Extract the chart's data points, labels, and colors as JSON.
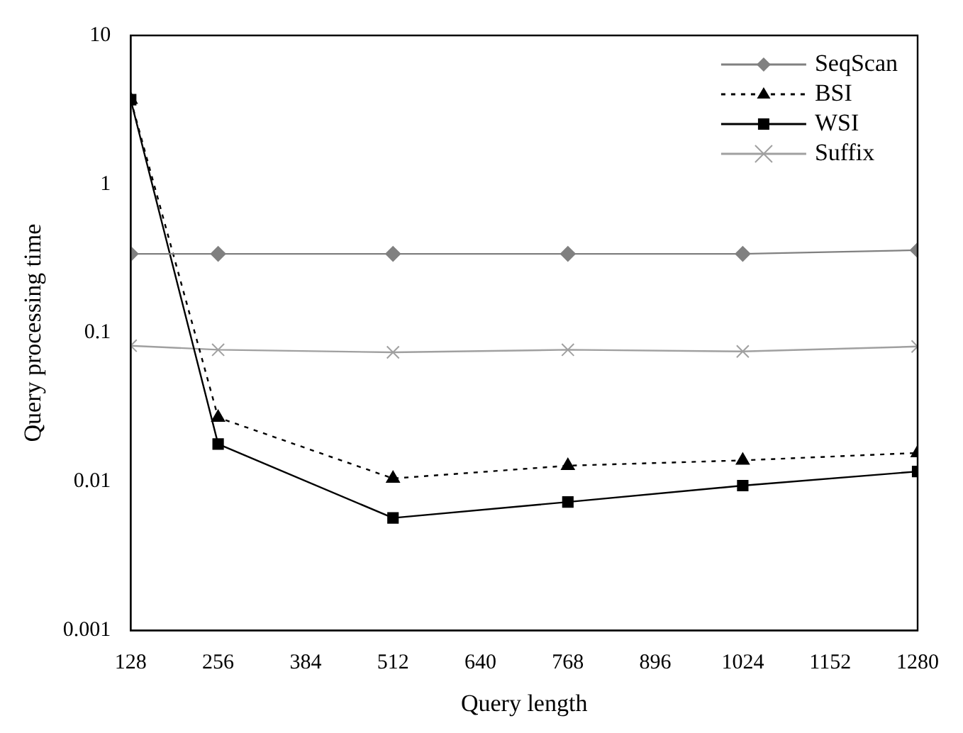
{
  "chart_data": {
    "type": "line",
    "xlabel": "Query length",
    "ylabel": "Query processing time",
    "x": [
      128,
      256,
      512,
      768,
      1024,
      1280
    ],
    "xlim": [
      128,
      1280
    ],
    "xticks": [
      128,
      256,
      384,
      512,
      640,
      768,
      896,
      1024,
      1152,
      1280
    ],
    "ylim": [
      0.001,
      10
    ],
    "yticks": [
      0.001,
      0.01,
      0.1,
      1,
      10
    ],
    "log": "y",
    "grid": false,
    "legend": "top right",
    "series": [
      {
        "name": "SeqScan",
        "color": "#808080",
        "marker": "diamond",
        "line_style": "solid",
        "values": [
          0.34,
          0.34,
          0.34,
          0.34,
          0.34,
          0.36
        ]
      },
      {
        "name": "BSI",
        "color": "#000000",
        "marker": "triangle",
        "line_style": "dotted",
        "values": [
          3.7,
          0.027,
          0.0105,
          0.0128,
          0.0139,
          0.0156
        ]
      },
      {
        "name": "WSI",
        "color": "#000000",
        "marker": "square",
        "line_style": "solid",
        "values": [
          3.7,
          0.0179,
          0.0057,
          0.0073,
          0.0094,
          0.0117
        ]
      },
      {
        "name": "Suffix",
        "color": "#a0a0a0",
        "marker": "cross",
        "line_style": "solid",
        "values": [
          0.082,
          0.077,
          0.074,
          0.077,
          0.075,
          0.081
        ]
      }
    ]
  }
}
